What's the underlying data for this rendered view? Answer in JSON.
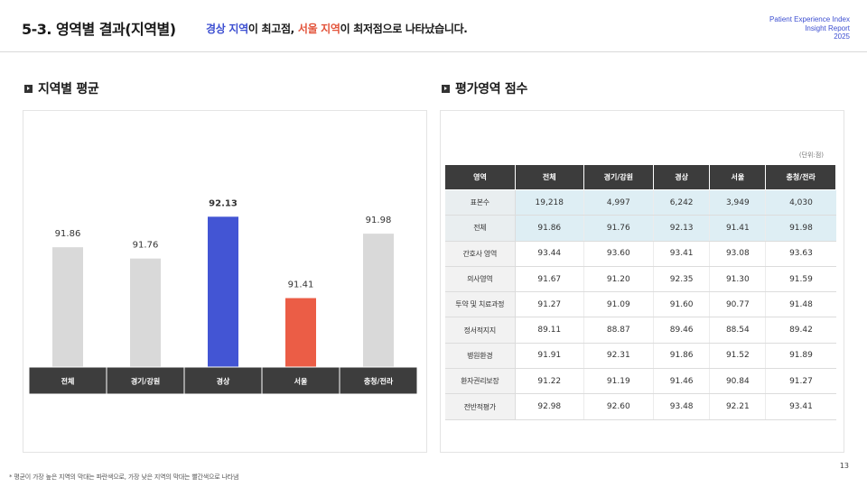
{
  "header": {
    "section_title": "5-3. 영역별 결과(지역별)",
    "subtitle_part1": "경상 지역",
    "subtitle_part2": "이 최고점, ",
    "subtitle_part3": "서울 지역",
    "subtitle_part4": "이 최저점으로 나타났습니다.",
    "brand_line1": "Patient Experience Index",
    "brand_line2": "Insight Report",
    "brand_line3": "2025"
  },
  "left_section": {
    "heading": "지역별 평균"
  },
  "right_section": {
    "heading": "평가영역 점수",
    "unit": "(단위:점)"
  },
  "colors": {
    "highest": "#4355d4",
    "lowest": "#eb5d46",
    "default": "#d9d9d9",
    "axis_band": "#3d3d3d"
  },
  "chart_data": {
    "type": "bar",
    "categories": [
      "전체",
      "경기/강원",
      "경상",
      "서울",
      "충청/전라"
    ],
    "values": [
      91.86,
      91.76,
      92.13,
      91.41,
      91.98
    ],
    "value_labels": [
      "91.86",
      "91.76",
      "92.13",
      "91.41",
      "91.98"
    ],
    "highlight": {
      "highest": "경상",
      "lowest": "서울"
    },
    "title": "",
    "xlabel": "",
    "ylabel": "",
    "ylim": [
      90.8,
      92.3
    ],
    "grid": false,
    "legend": "none"
  },
  "table": {
    "columns": [
      "영역",
      "전체",
      "경기/강원",
      "경상",
      "서울",
      "충청/전라"
    ],
    "rows": [
      {
        "label": "표본수",
        "values": [
          "19,218",
          "4,997",
          "6,242",
          "3,949",
          "4,030"
        ],
        "highlight": true
      },
      {
        "label": "전체",
        "values": [
          "91.86",
          "91.76",
          "92.13",
          "91.41",
          "91.98"
        ],
        "highlight": true
      },
      {
        "label": "간호사 영역",
        "values": [
          "93.44",
          "93.60",
          "93.41",
          "93.08",
          "93.63"
        ],
        "highlight": false
      },
      {
        "label": "의사영역",
        "values": [
          "91.67",
          "91.20",
          "92.35",
          "91.30",
          "91.59"
        ],
        "highlight": false
      },
      {
        "label": "투약 및 치료과정",
        "values": [
          "91.27",
          "91.09",
          "91.60",
          "90.77",
          "91.48"
        ],
        "highlight": false
      },
      {
        "label": "정서적지지",
        "values": [
          "89.11",
          "88.87",
          "89.46",
          "88.54",
          "89.42"
        ],
        "highlight": false
      },
      {
        "label": "병원환경",
        "values": [
          "91.91",
          "92.31",
          "91.86",
          "91.52",
          "91.89"
        ],
        "highlight": false
      },
      {
        "label": "환자권리보장",
        "values": [
          "91.22",
          "91.19",
          "91.46",
          "90.84",
          "91.27"
        ],
        "highlight": false
      },
      {
        "label": "전반적평가",
        "values": [
          "92.98",
          "92.60",
          "93.48",
          "92.21",
          "93.41"
        ],
        "highlight": false
      }
    ]
  },
  "footnote": "* 평균이 가장 높은 지역의 막대는 파란색으로, 가장 낮은 지역의 막대는 빨간색으로 나타냄",
  "page_number": "13"
}
